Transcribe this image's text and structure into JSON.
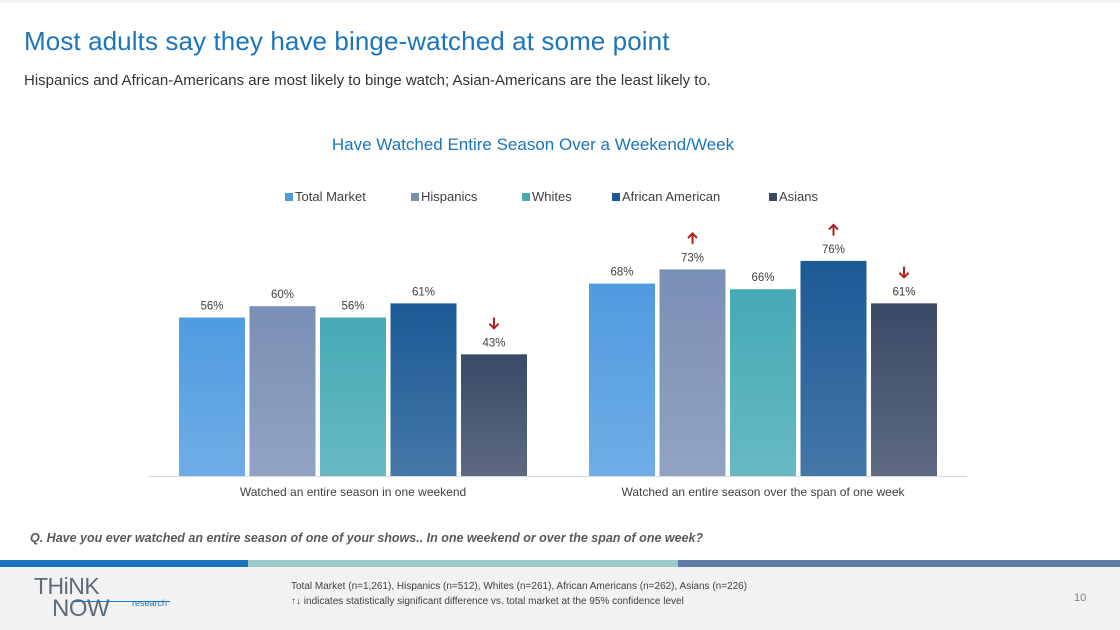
{
  "header": {
    "title": "Most adults say they have binge-watched at some point",
    "subtitle": "Hispanics and African-Americans are most likely to binge watch; Asian-Americans are the least likely to."
  },
  "chart_data": {
    "type": "bar",
    "title": "Have Watched Entire Season Over a Weekend/Week",
    "categories": [
      "Watched an entire season in one weekend",
      "Watched an entire season over the span of one week"
    ],
    "series": [
      {
        "name": "Total Market",
        "values": [
          56,
          68
        ],
        "labels": [
          "56%",
          "68%"
        ],
        "markers": [
          "",
          ""
        ],
        "color": "#4f9be0"
      },
      {
        "name": "Hispanics",
        "values": [
          60,
          73
        ],
        "labels": [
          "60%",
          "73%"
        ],
        "markers": [
          "",
          "up"
        ],
        "color": "#7a8fb5"
      },
      {
        "name": "Whites",
        "values": [
          56,
          66
        ],
        "labels": [
          "56%",
          "66%"
        ],
        "markers": [
          "",
          ""
        ],
        "color": "#45aab5"
      },
      {
        "name": "African American",
        "values": [
          61,
          76
        ],
        "labels": [
          "61%",
          "76%"
        ],
        "markers": [
          "",
          "up"
        ],
        "color": "#1b5a95"
      },
      {
        "name": "Asians",
        "values": [
          43,
          61
        ],
        "labels": [
          "43%",
          "61%"
        ],
        "markers": [
          "down",
          "down"
        ],
        "color": "#3a4966"
      }
    ],
    "ylim": [
      0,
      100
    ],
    "grid": false,
    "legend_position": "top",
    "marker_color": "#b21f1f"
  },
  "question": "Q. Have you ever watched an entire season of one of your shows.. In one weekend or over the span of one week?",
  "footer": {
    "logo_think": "THiNK",
    "logo_now": "NOW",
    "logo_research": "research",
    "sample_note": "Total Market (n=1,261), Hispanics (n=512), Whites (n=261), African Americans (n=262), Asians (n=226)",
    "arrows": "↑↓",
    "significance_note": "indicates statistically significant difference vs. total market at the 95% confidence level",
    "page_number": "10"
  },
  "colors": {
    "title": "#1b75bc",
    "stripe_left": "#1b75bc",
    "stripe_middle": "#9bc9ca",
    "stripe_right": "#5e7ba6"
  }
}
